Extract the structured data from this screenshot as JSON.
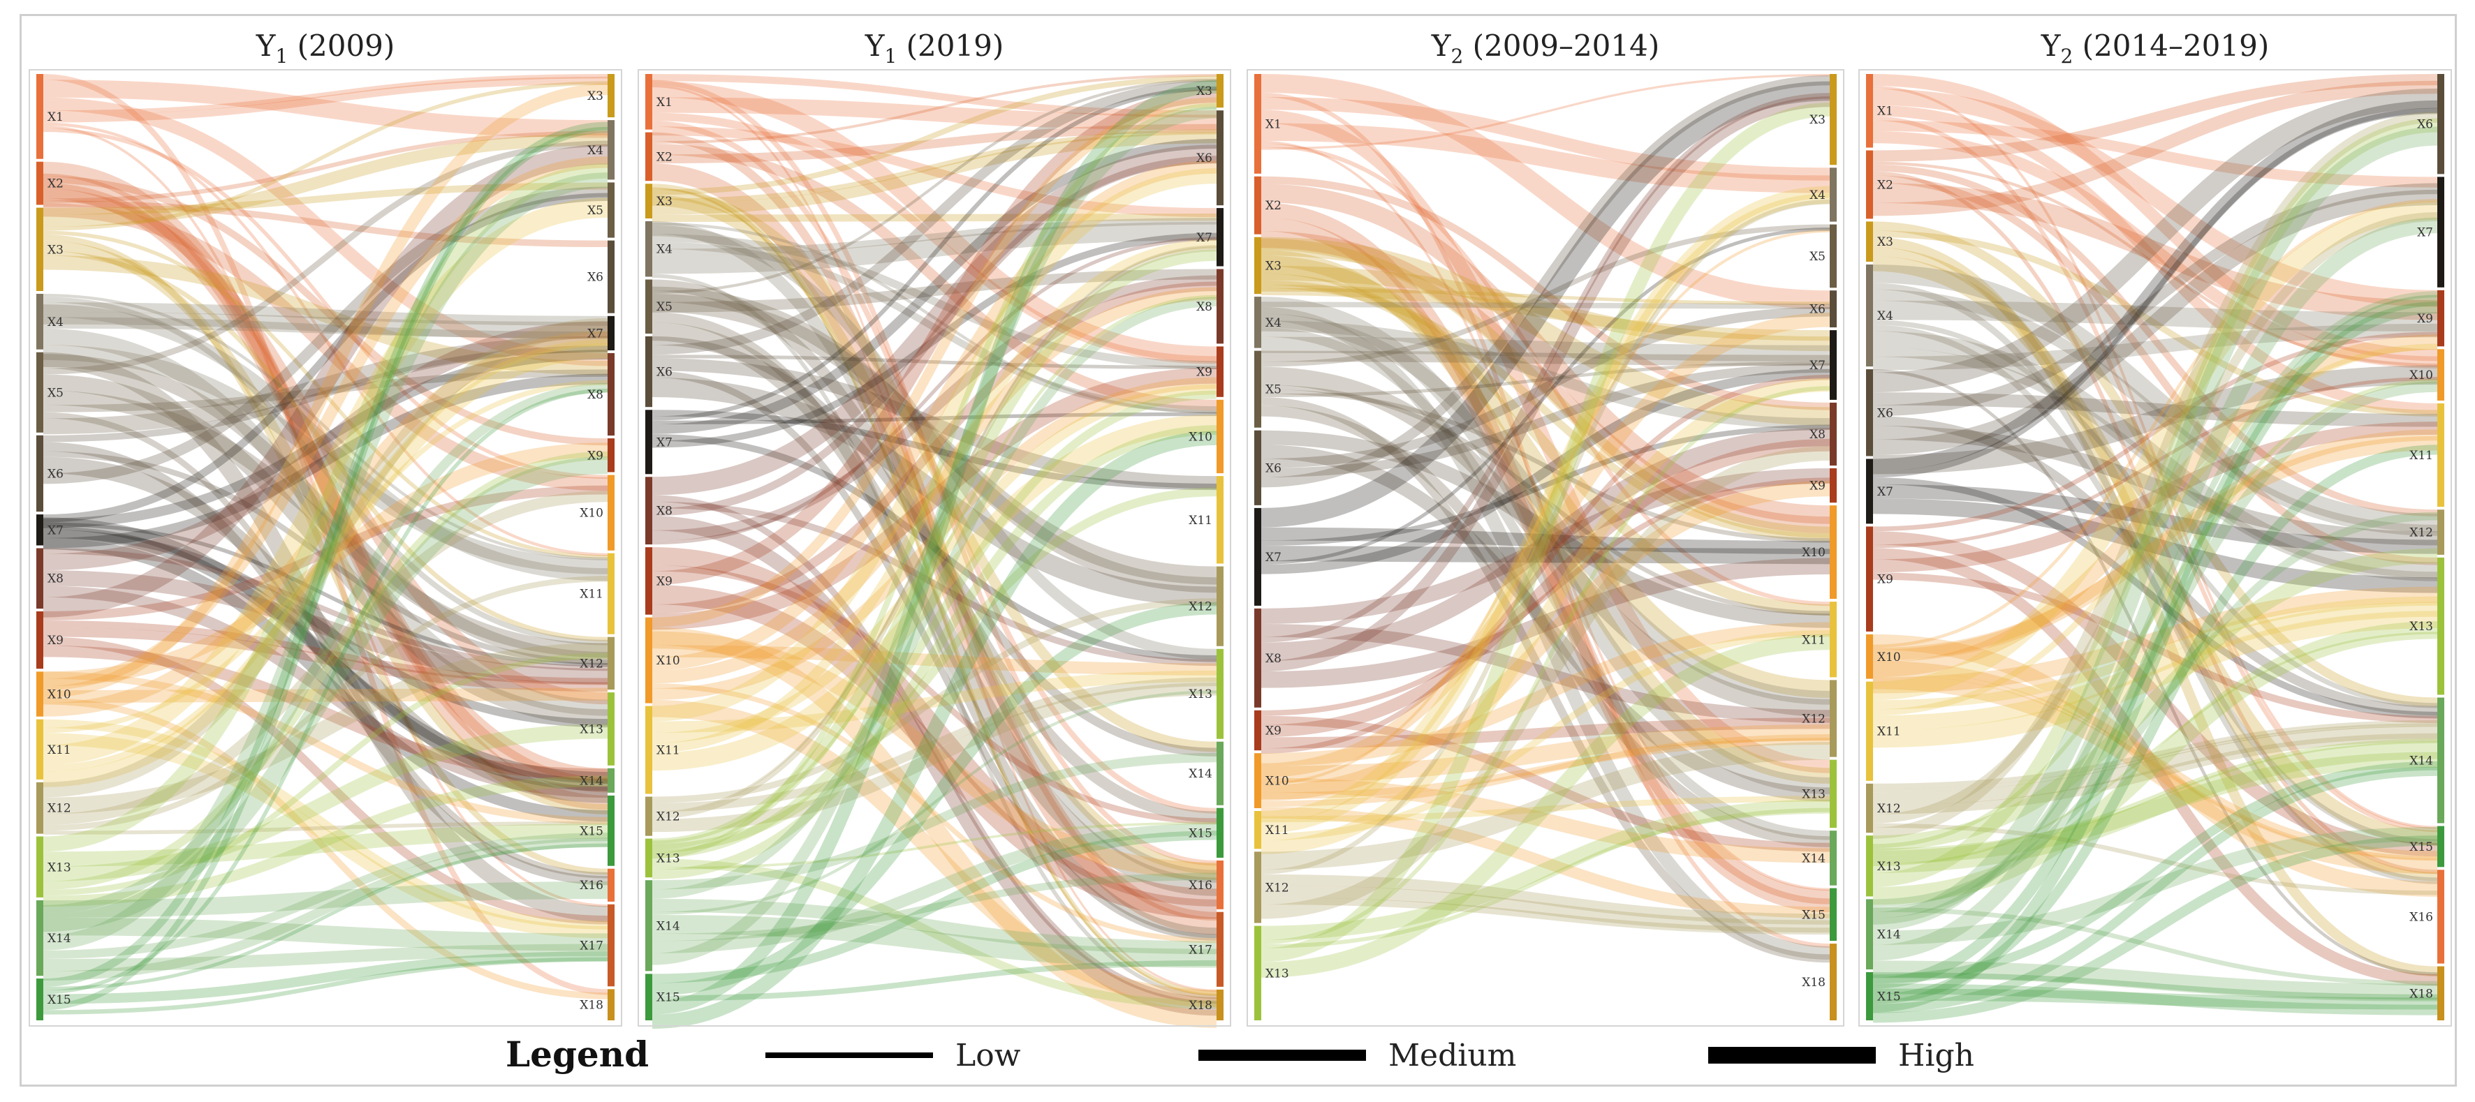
{
  "chart_data": {
    "type": "sankey",
    "panels": [
      {
        "title_main": "Y",
        "title_sub": "1",
        "title_rest": " (2009)",
        "left_nodes": [
          "X1",
          "X2",
          "X3",
          "X4",
          "X5",
          "X6",
          "X7",
          "X8",
          "X9",
          "X10",
          "X11",
          "X12",
          "X13",
          "X14",
          "X15"
        ],
        "right_nodes": [
          "X3",
          "X4",
          "X5",
          "X6",
          "X7",
          "X8",
          "X9",
          "X10",
          "X11",
          "X12",
          "X13",
          "X14",
          "X15",
          "X16",
          "X17",
          "X18"
        ]
      },
      {
        "title_main": "Y",
        "title_sub": "1",
        "title_rest": " (2019)",
        "left_nodes": [
          "X1",
          "X2",
          "X3",
          "X4",
          "X5",
          "X6",
          "X7",
          "X8",
          "X9",
          "X10",
          "X11",
          "X12",
          "X13",
          "X14",
          "X15"
        ],
        "right_nodes": [
          "X3",
          "X6",
          "X7",
          "X8",
          "X9",
          "X10",
          "X11",
          "X12",
          "X13",
          "X14",
          "X15",
          "X16",
          "X17",
          "X18"
        ]
      },
      {
        "title_main": "Y",
        "title_sub": "2",
        "title_rest": " (2009–2014)",
        "left_nodes": [
          "X1",
          "X2",
          "X3",
          "X4",
          "X5",
          "X6",
          "X7",
          "X8",
          "X9",
          "X10",
          "X11",
          "X12",
          "X13"
        ],
        "right_nodes": [
          "X3",
          "X4",
          "X5",
          "X6",
          "X7",
          "X8",
          "X9",
          "X10",
          "X11",
          "X12",
          "X13",
          "X14",
          "X15",
          "X18"
        ]
      },
      {
        "title_main": "Y",
        "title_sub": "2",
        "title_rest": " (2014–2019)",
        "left_nodes": [
          "X1",
          "X2",
          "X3",
          "X4",
          "X6",
          "X7",
          "X9",
          "X10",
          "X11",
          "X12",
          "X13",
          "X14",
          "X15"
        ],
        "right_nodes": [
          "X6",
          "X7",
          "X9",
          "X10",
          "X11",
          "X12",
          "X13",
          "X14",
          "X15",
          "X16",
          "X18"
        ]
      }
    ],
    "node_colors": {
      "X1": "#e8703a",
      "X2": "#d9602a",
      "X3": "#c99a1c",
      "X4": "#7f7560",
      "X5": "#6b5e45",
      "X6": "#5a4d3a",
      "X7": "#1e1a16",
      "X8": "#7a3a2a",
      "X9": "#a83c1c",
      "X10": "#f09a2a",
      "X11": "#e8c23c",
      "X12": "#a89a5a",
      "X13": "#9cc23c",
      "X14": "#6aa85a",
      "X15": "#3c9a3c",
      "X16": "#e8703a",
      "X17": "#c85a28",
      "X18": "#c8901c"
    },
    "legend": {
      "title": "Legend",
      "items": [
        {
          "label": "Low",
          "level": 1
        },
        {
          "label": "Medium",
          "level": 2
        },
        {
          "label": "High",
          "level": 3
        }
      ]
    }
  }
}
